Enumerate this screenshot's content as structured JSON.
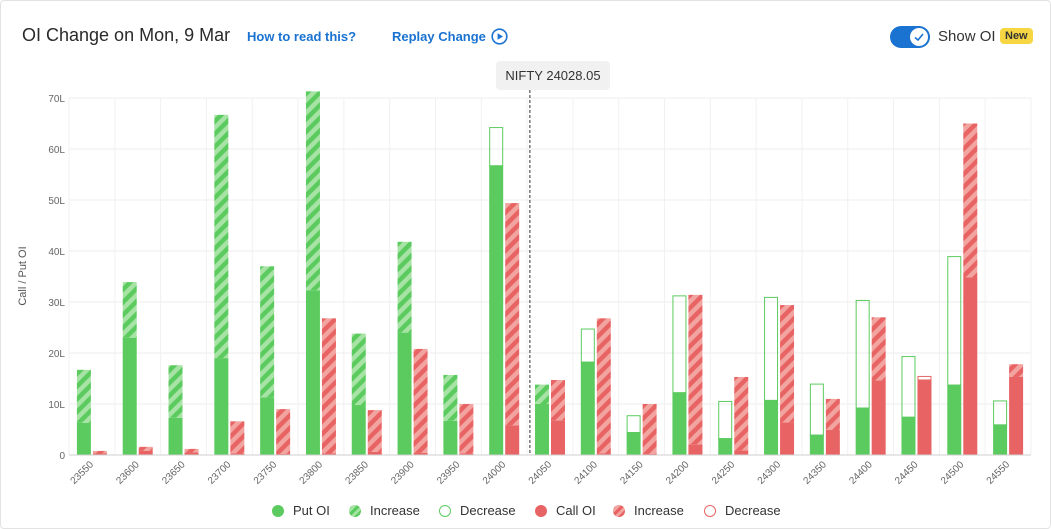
{
  "header": {
    "title": "OI Change on Mon, 9 Mar",
    "how_to_read": "How to read this?",
    "replay": "Replay Change",
    "show_oi": "Show OI",
    "badge": "New"
  },
  "spot_label": "NIFTY 24028.05",
  "colors": {
    "put": "#5ccb5f",
    "put_stripe": "#a6e3a5",
    "call": "#e86464",
    "call_stripe": "#f2a5a0",
    "accent": "#1a73d1",
    "badge": "#f6d743"
  },
  "legend": [
    {
      "label": "Put OI",
      "style": "put-solid"
    },
    {
      "label": "Increase",
      "style": "put-hatched"
    },
    {
      "label": "Decrease",
      "style": "put-outline"
    },
    {
      "label": "Call OI",
      "style": "call-solid"
    },
    {
      "label": "Increase",
      "style": "call-hatched"
    },
    {
      "label": "Decrease",
      "style": "call-outline"
    }
  ],
  "chart_data": {
    "type": "bar",
    "ylabel": "Call / Put OI",
    "ylim": [
      0,
      70
    ],
    "yticks": [
      "0",
      "10L",
      "20L",
      "30L",
      "40L",
      "50L",
      "60L",
      "70L"
    ],
    "spot": 24028.05,
    "grid": true,
    "categories": [
      "23550",
      "23600",
      "23650",
      "23700",
      "23750",
      "23800",
      "23850",
      "23900",
      "23950",
      "24000",
      "24050",
      "24100",
      "24150",
      "24200",
      "24250",
      "24300",
      "24350",
      "24400",
      "24450",
      "24500",
      "24550"
    ],
    "put": {
      "prev": [
        6.3,
        23,
        7.3,
        19,
        11.3,
        32.3,
        9.8,
        24,
        6.7,
        64.3,
        10,
        24.8,
        7.8,
        31.3,
        10.6,
        31,
        14,
        30.4,
        19.4,
        39,
        10.7
      ],
      "curr": [
        16.7,
        33.9,
        17.6,
        66.7,
        37,
        71.3,
        23.8,
        41.8,
        15.7,
        56.8,
        13.8,
        18.3,
        4.5,
        12.3,
        3.3,
        10.8,
        4,
        9.3,
        7.5,
        13.8,
        6
      ]
    },
    "call": {
      "prev": [
        0.3,
        0.8,
        0.5,
        0.3,
        0.2,
        0.3,
        0.6,
        0.4,
        0.3,
        5.8,
        6.8,
        0.3,
        0.2,
        2.1,
        0.9,
        6.4,
        4.9,
        14.6,
        15.5,
        34.8,
        15.3
      ],
      "curr": [
        0.8,
        1.6,
        1.2,
        6.6,
        9,
        26.8,
        8.8,
        20.8,
        10,
        49.4,
        14.7,
        26.8,
        10,
        31.4,
        15.3,
        29.4,
        11,
        27,
        14.8,
        65,
        17.8
      ]
    }
  }
}
